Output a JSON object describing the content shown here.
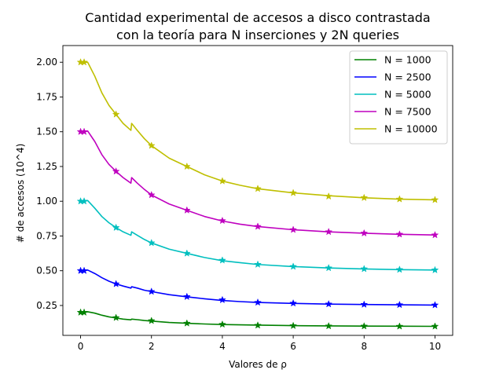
{
  "chart_data": {
    "type": "line",
    "title_lines": [
      "Cantidad experimental de accesos a disco contrastada",
      "con la teoría para N inserciones y 2N queries"
    ],
    "xlabel": "Valores de ρ",
    "ylabel": "# de accesos (10^4)",
    "xlim": [
      -0.5,
      10.5
    ],
    "ylim": [
      0.035,
      2.12
    ],
    "xticks": [
      0,
      2,
      4,
      6,
      8,
      10
    ],
    "yticks": [
      0.25,
      0.5,
      0.75,
      1.0,
      1.25,
      1.5,
      1.75,
      2.0
    ],
    "ytick_labels": [
      "0.25",
      "0.50",
      "0.75",
      "1.00",
      "1.25",
      "1.50",
      "1.75",
      "2.00"
    ],
    "legend_position": "upper right",
    "experimental_x": [
      0,
      0.1,
      1,
      2,
      3,
      4,
      5,
      6,
      7,
      8,
      9,
      10
    ],
    "series": [
      {
        "name": "N = 1000",
        "color": "#008000",
        "curve": [
          [
            0,
            0.2
          ],
          [
            0.1,
            0.2
          ],
          [
            0.2,
            0.205
          ],
          [
            0.4,
            0.195
          ],
          [
            0.6,
            0.18
          ],
          [
            0.8,
            0.168
          ],
          [
            1.0,
            0.16
          ],
          [
            1.2,
            0.152
          ],
          [
            1.42,
            0.147
          ],
          [
            1.44,
            0.152
          ],
          [
            1.6,
            0.148
          ],
          [
            1.8,
            0.142
          ],
          [
            2.0,
            0.138
          ],
          [
            2.5,
            0.128
          ],
          [
            3.0,
            0.122
          ],
          [
            3.5,
            0.117
          ],
          [
            4.0,
            0.113
          ],
          [
            4.5,
            0.111
          ],
          [
            5.0,
            0.109
          ],
          [
            6.0,
            0.105
          ],
          [
            7.0,
            0.103
          ],
          [
            8.0,
            0.102
          ],
          [
            9.0,
            0.101
          ],
          [
            10.0,
            0.1
          ]
        ],
        "experimental": [
          0.2,
          0.2,
          0.162,
          0.14,
          0.122,
          0.114,
          0.107,
          0.104,
          0.102,
          0.101,
          0.1,
          0.1
        ]
      },
      {
        "name": "N = 2500",
        "color": "#0000ff",
        "curve": [
          [
            0,
            0.5
          ],
          [
            0.1,
            0.5
          ],
          [
            0.2,
            0.505
          ],
          [
            0.4,
            0.48
          ],
          [
            0.6,
            0.45
          ],
          [
            0.8,
            0.425
          ],
          [
            1.0,
            0.405
          ],
          [
            1.2,
            0.39
          ],
          [
            1.42,
            0.375
          ],
          [
            1.44,
            0.385
          ],
          [
            1.6,
            0.375
          ],
          [
            1.8,
            0.36
          ],
          [
            2.0,
            0.35
          ],
          [
            2.5,
            0.328
          ],
          [
            3.0,
            0.312
          ],
          [
            3.5,
            0.298
          ],
          [
            4.0,
            0.286
          ],
          [
            4.5,
            0.278
          ],
          [
            5.0,
            0.272
          ],
          [
            6.0,
            0.265
          ],
          [
            7.0,
            0.26
          ],
          [
            8.0,
            0.257
          ],
          [
            9.0,
            0.255
          ],
          [
            10.0,
            0.253
          ]
        ],
        "experimental": [
          0.5,
          0.5,
          0.405,
          0.35,
          0.313,
          0.29,
          0.272,
          0.266,
          0.26,
          0.257,
          0.255,
          0.253
        ]
      },
      {
        "name": "N = 5000",
        "color": "#00bfbf",
        "curve": [
          [
            0,
            1.0
          ],
          [
            0.1,
            1.0
          ],
          [
            0.2,
            1.005
          ],
          [
            0.4,
            0.95
          ],
          [
            0.6,
            0.89
          ],
          [
            0.8,
            0.845
          ],
          [
            1.0,
            0.81
          ],
          [
            1.2,
            0.78
          ],
          [
            1.42,
            0.755
          ],
          [
            1.44,
            0.78
          ],
          [
            1.6,
            0.755
          ],
          [
            1.8,
            0.725
          ],
          [
            2.0,
            0.7
          ],
          [
            2.5,
            0.655
          ],
          [
            3.0,
            0.625
          ],
          [
            3.5,
            0.595
          ],
          [
            4.0,
            0.572
          ],
          [
            4.5,
            0.558
          ],
          [
            5.0,
            0.545
          ],
          [
            6.0,
            0.53
          ],
          [
            7.0,
            0.52
          ],
          [
            8.0,
            0.513
          ],
          [
            9.0,
            0.508
          ],
          [
            10.0,
            0.505
          ]
        ],
        "experimental": [
          1.0,
          1.0,
          0.81,
          0.7,
          0.625,
          0.575,
          0.545,
          0.53,
          0.52,
          0.513,
          0.508,
          0.505
        ]
      },
      {
        "name": "N = 7500",
        "color": "#bf00bf",
        "curve": [
          [
            0,
            1.5
          ],
          [
            0.1,
            1.5
          ],
          [
            0.2,
            1.505
          ],
          [
            0.4,
            1.43
          ],
          [
            0.6,
            1.335
          ],
          [
            0.8,
            1.265
          ],
          [
            1.0,
            1.215
          ],
          [
            1.2,
            1.17
          ],
          [
            1.42,
            1.13
          ],
          [
            1.44,
            1.17
          ],
          [
            1.6,
            1.13
          ],
          [
            1.8,
            1.085
          ],
          [
            2.0,
            1.045
          ],
          [
            2.5,
            0.98
          ],
          [
            3.0,
            0.935
          ],
          [
            3.5,
            0.89
          ],
          [
            4.0,
            0.858
          ],
          [
            4.5,
            0.835
          ],
          [
            5.0,
            0.818
          ],
          [
            6.0,
            0.795
          ],
          [
            7.0,
            0.78
          ],
          [
            8.0,
            0.77
          ],
          [
            9.0,
            0.762
          ],
          [
            10.0,
            0.757
          ]
        ],
        "experimental": [
          1.5,
          1.5,
          1.215,
          1.045,
          0.935,
          0.86,
          0.818,
          0.795,
          0.78,
          0.77,
          0.762,
          0.757
        ]
      },
      {
        "name": "N = 10000",
        "color": "#bfbf00",
        "curve": [
          [
            0,
            2.0
          ],
          [
            0.1,
            2.0
          ],
          [
            0.2,
            2.0
          ],
          [
            0.4,
            1.9
          ],
          [
            0.6,
            1.78
          ],
          [
            0.8,
            1.69
          ],
          [
            1.0,
            1.625
          ],
          [
            1.2,
            1.56
          ],
          [
            1.42,
            1.51
          ],
          [
            1.44,
            1.56
          ],
          [
            1.6,
            1.51
          ],
          [
            1.8,
            1.45
          ],
          [
            2.0,
            1.4
          ],
          [
            2.5,
            1.31
          ],
          [
            3.0,
            1.25
          ],
          [
            3.5,
            1.19
          ],
          [
            4.0,
            1.145
          ],
          [
            4.5,
            1.115
          ],
          [
            5.0,
            1.09
          ],
          [
            6.0,
            1.06
          ],
          [
            7.0,
            1.04
          ],
          [
            8.0,
            1.025
          ],
          [
            9.0,
            1.015
          ],
          [
            10.0,
            1.01
          ]
        ],
        "experimental": [
          2.0,
          2.0,
          1.625,
          1.4,
          1.25,
          1.145,
          1.09,
          1.06,
          1.035,
          1.025,
          1.015,
          1.01
        ]
      }
    ]
  }
}
